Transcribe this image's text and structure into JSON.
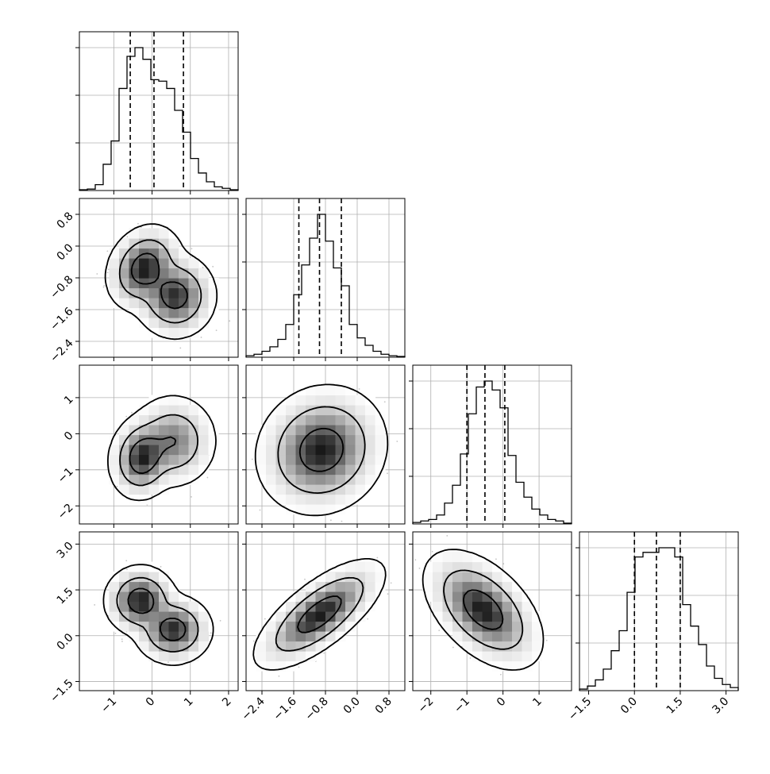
{
  "chart_data": {
    "type": "corner",
    "title": "",
    "seed": 7,
    "grid": true,
    "hist_bins": 20,
    "contour_levels": [
      0.39,
      0.86,
      0.99
    ],
    "quantiles": [
      0.16,
      0.5,
      0.84
    ],
    "colors": {
      "line": "#000000",
      "grid": "#b0b0b0",
      "scatter": "#5a5a5a",
      "density": "#000000"
    },
    "variables": [
      {
        "label": "",
        "range": [
          -1.9,
          2.25
        ],
        "ticks": [
          -1,
          0,
          1,
          2
        ],
        "tick_labels": [
          "−1",
          "0",
          "1",
          "2"
        ],
        "quantile_values": [
          -0.57,
          0.05,
          0.82
        ],
        "hist": [
          0.005,
          0.01,
          0.04,
          0.18,
          0.34,
          0.7,
          0.92,
          0.98,
          0.9,
          0.76,
          0.75,
          0.7,
          0.55,
          0.4,
          0.22,
          0.12,
          0.06,
          0.025,
          0.015,
          0.005
        ]
      },
      {
        "label": "",
        "range": [
          -2.8,
          1.2
        ],
        "ticks": [
          -2.4,
          -1.6,
          -0.8,
          0.0,
          0.8
        ],
        "tick_labels": [
          "−2.4",
          "−1.6",
          "−0.8",
          "0.0",
          "0.8"
        ],
        "quantile_values": [
          -1.47,
          -0.95,
          -0.4
        ],
        "hist": [
          0.01,
          0.02,
          0.04,
          0.07,
          0.12,
          0.22,
          0.42,
          0.62,
          0.8,
          0.96,
          0.78,
          0.6,
          0.48,
          0.22,
          0.13,
          0.08,
          0.04,
          0.02,
          0.01,
          0.005
        ]
      },
      {
        "label": "",
        "range": [
          -2.5,
          1.9
        ],
        "ticks": [
          -2,
          -1,
          0,
          1
        ],
        "tick_labels": [
          "−2",
          "−1",
          "0",
          "1"
        ],
        "quantile_values": [
          -1.0,
          -0.5,
          0.05
        ],
        "hist": [
          0.01,
          0.02,
          0.03,
          0.06,
          0.14,
          0.26,
          0.47,
          0.74,
          0.92,
          0.96,
          0.9,
          0.78,
          0.46,
          0.28,
          0.18,
          0.1,
          0.06,
          0.03,
          0.02,
          0.005
        ]
      },
      {
        "label": "",
        "range": [
          -1.8,
          3.4
        ],
        "ticks": [
          -1.5,
          0.0,
          1.5,
          3.0
        ],
        "tick_labels": [
          "−1.5",
          "0.0",
          "1.5",
          "3.0"
        ],
        "quantile_values": [
          0.0,
          0.72,
          1.5
        ],
        "hist": [
          0.01,
          0.03,
          0.07,
          0.14,
          0.26,
          0.39,
          0.64,
          0.87,
          0.9,
          0.9,
          0.93,
          0.93,
          0.87,
          0.56,
          0.42,
          0.3,
          0.16,
          0.08,
          0.04,
          0.02
        ]
      }
    ],
    "pair_modes": {
      "1-0": [
        {
          "w": 0.5,
          "mean": [
            -0.2,
            -0.55
          ],
          "sd": [
            0.35,
            0.38
          ],
          "rho": 0.2
        },
        {
          "w": 0.5,
          "mean": [
            0.6,
            -1.25
          ],
          "sd": [
            0.38,
            0.38
          ],
          "rho": 0.0
        }
      ],
      "2-0": [
        {
          "w": 0.55,
          "mean": [
            -0.25,
            -0.65
          ],
          "sd": [
            0.3,
            0.4
          ],
          "rho": 0.1
        },
        {
          "w": 0.45,
          "mean": [
            0.55,
            -0.2
          ],
          "sd": [
            0.4,
            0.45
          ],
          "rho": 0.0
        }
      ],
      "2-1": [
        {
          "w": 1.0,
          "mean": [
            -0.9,
            -0.45
          ],
          "sd": [
            0.55,
            0.6
          ],
          "rho": 0.1
        }
      ],
      "3-0": [
        {
          "w": 0.5,
          "mean": [
            -0.3,
            1.15
          ],
          "sd": [
            0.33,
            0.4
          ],
          "rho": 0.0
        },
        {
          "w": 0.5,
          "mean": [
            0.55,
            0.2
          ],
          "sd": [
            0.36,
            0.4
          ],
          "rho": 0.0
        }
      ],
      "3-1": [
        {
          "w": 1.0,
          "mean": [
            -0.95,
            0.7
          ],
          "sd": [
            0.55,
            0.6
          ],
          "rho": 0.72
        }
      ],
      "3-2": [
        {
          "w": 1.0,
          "mean": [
            -0.55,
            0.85
          ],
          "sd": [
            0.55,
            0.65
          ],
          "rho": -0.5
        }
      ]
    }
  }
}
